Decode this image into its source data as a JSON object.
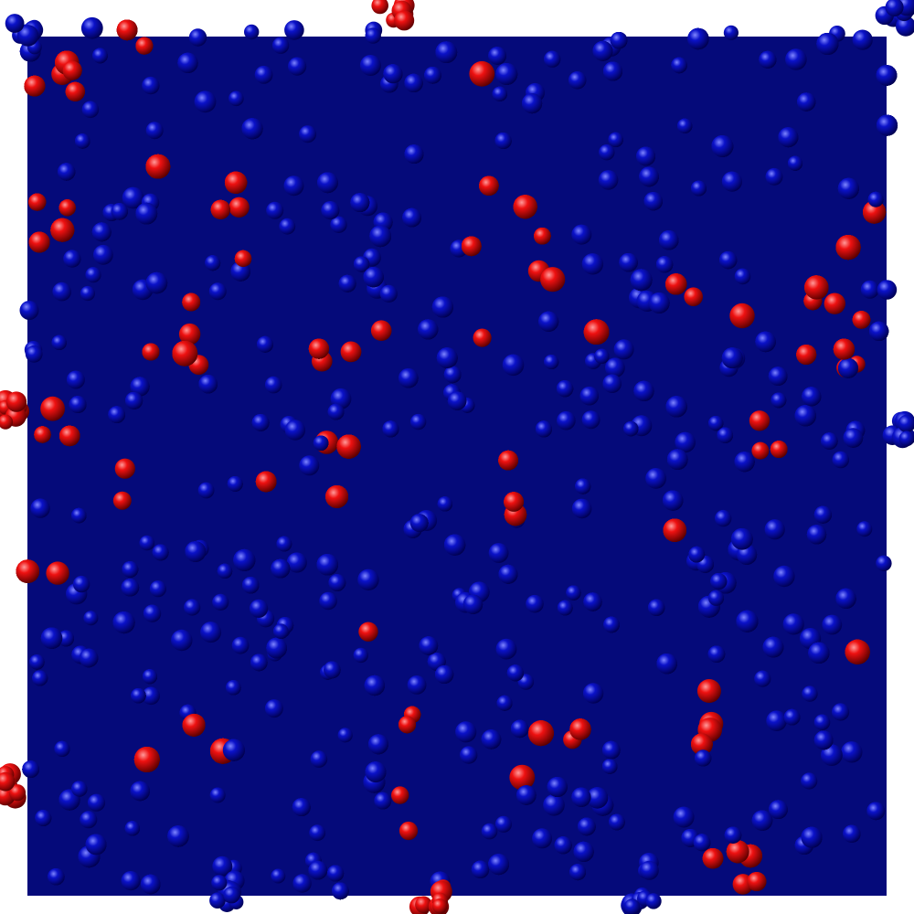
{
  "scene": {
    "subject": "molecular-dynamics-snapshot",
    "style": "space-filling-spheres",
    "colors": {
      "background": "#ffffff",
      "blue_species": "#0b12c9",
      "blue_highlight": "#7f86ff",
      "blue_shadow": "#000050",
      "red_species": "#ee1111",
      "red_highlight": "#ff9a9a",
      "red_shadow": "#5a0000"
    }
  }
}
